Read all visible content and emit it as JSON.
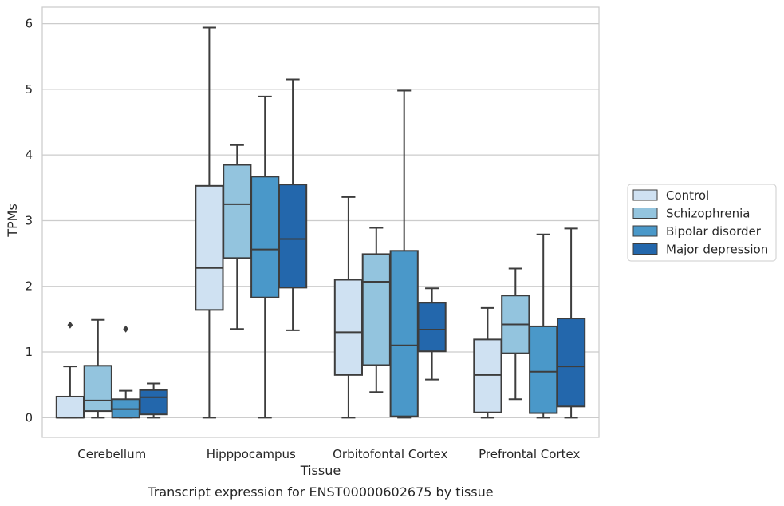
{
  "chart_data": {
    "type": "box",
    "title": "",
    "caption": "Transcript expression for ENST00000602675 by tissue",
    "xlabel": "Tissue",
    "ylabel": "TPMs",
    "ylim": [
      -0.3,
      6.25
    ],
    "yticks": [
      0,
      1,
      2,
      3,
      4,
      5,
      6
    ],
    "grid": "horizontal",
    "legend_position": "right",
    "categories": [
      "Cerebellum",
      "Hipppocampus",
      "Orbitofontal Cortex",
      "Prefrontal Cortex"
    ],
    "series": [
      {
        "name": "Control",
        "color": "#cfe1f2",
        "boxes": [
          {
            "whislo": 0.0,
            "q1": 0.0,
            "med": 0.0,
            "q3": 0.32,
            "whishi": 0.78,
            "fliers": []
          },
          {
            "whislo": 0.0,
            "q1": 1.64,
            "med": 2.28,
            "q3": 3.53,
            "whishi": 5.94,
            "fliers": []
          },
          {
            "whislo": 0.0,
            "q1": 0.65,
            "med": 1.3,
            "q3": 2.1,
            "whishi": 3.36,
            "fliers": []
          },
          {
            "whislo": 0.0,
            "q1": 0.08,
            "med": 0.65,
            "q3": 1.19,
            "whishi": 1.67,
            "fliers": []
          }
        ]
      },
      {
        "name": "Schizophrenia",
        "color": "#93c4de",
        "boxes": [
          {
            "whislo": 0.0,
            "q1": 0.1,
            "med": 0.26,
            "q3": 0.79,
            "whishi": 1.49,
            "fliers": []
          },
          {
            "whislo": 1.35,
            "q1": 2.43,
            "med": 3.25,
            "q3": 3.85,
            "whishi": 4.15,
            "fliers": []
          },
          {
            "whislo": 0.39,
            "q1": 0.8,
            "med": 2.07,
            "q3": 2.49,
            "whishi": 2.89,
            "fliers": []
          },
          {
            "whislo": 0.28,
            "q1": 0.98,
            "med": 1.42,
            "q3": 1.86,
            "whishi": 2.27,
            "fliers": []
          }
        ]
      },
      {
        "name": "Bipolar disorder",
        "color": "#4a98c9",
        "boxes": [
          {
            "whislo": 0.0,
            "q1": 0.0,
            "med": 0.13,
            "q3": 0.28,
            "whishi": 0.41,
            "fliers": [
              1.35
            ]
          },
          {
            "whislo": 0.0,
            "q1": 1.83,
            "med": 2.56,
            "q3": 3.67,
            "whishi": 4.89,
            "fliers": []
          },
          {
            "whislo": 0.0,
            "q1": 0.02,
            "med": 1.1,
            "q3": 2.54,
            "whishi": 4.98,
            "fliers": []
          },
          {
            "whislo": 0.0,
            "q1": 0.07,
            "med": 0.7,
            "q3": 1.39,
            "whishi": 2.79,
            "fliers": []
          }
        ]
      },
      {
        "name": "Major depression",
        "color": "#2367ac",
        "boxes": [
          {
            "whislo": 0.0,
            "q1": 0.05,
            "med": 0.31,
            "q3": 0.42,
            "whishi": 0.52,
            "fliers": []
          },
          {
            "whislo": 1.33,
            "q1": 1.98,
            "med": 2.72,
            "q3": 3.55,
            "whishi": 5.15,
            "fliers": []
          },
          {
            "whislo": 0.58,
            "q1": 1.01,
            "med": 1.34,
            "q3": 1.75,
            "whishi": 1.97,
            "fliers": []
          },
          {
            "whislo": 0.0,
            "q1": 0.17,
            "med": 0.78,
            "q3": 1.51,
            "whishi": 2.88,
            "fliers": []
          }
        ]
      }
    ],
    "extra_fliers": [
      {
        "series": "Control",
        "category": "Cerebellum",
        "value": 1.41
      }
    ]
  }
}
